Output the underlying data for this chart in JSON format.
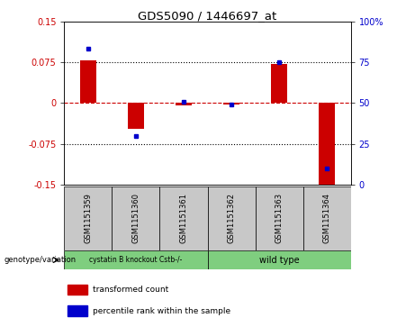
{
  "title": "GDS5090 / 1446697_at",
  "samples": [
    "GSM1151359",
    "GSM1151360",
    "GSM1151361",
    "GSM1151362",
    "GSM1151363",
    "GSM1151364"
  ],
  "transformed_count": [
    0.079,
    -0.047,
    -0.005,
    -0.003,
    0.072,
    -0.155
  ],
  "percentile_rank": [
    83,
    30,
    51,
    49,
    75,
    10
  ],
  "ylim_left": [
    -0.15,
    0.15
  ],
  "ylim_right": [
    0,
    100
  ],
  "yticks_left": [
    -0.15,
    -0.075,
    0,
    0.075,
    0.15
  ],
  "ytick_labels_left": [
    "-0.15",
    "-0.075",
    "0",
    "0.075",
    "0.15"
  ],
  "yticks_right": [
    0,
    25,
    50,
    75,
    100
  ],
  "ytick_labels_right": [
    "0",
    "25",
    "50",
    "75",
    "100%"
  ],
  "bar_color": "#cc0000",
  "dot_color": "#0000cc",
  "group1_label": "cystatin B knockout Cstb-/-",
  "group2_label": "wild type",
  "group_color": "#7fce7f",
  "sample_box_color": "#c8c8c8",
  "genotype_label": "genotype/variation",
  "legend_red": "transformed count",
  "legend_blue": "percentile rank within the sample",
  "hline_color": "#cc0000",
  "dotted_line_color": "#000000",
  "tick_color_left": "#cc0000",
  "tick_color_right": "#0000cc",
  "bar_width": 0.35
}
